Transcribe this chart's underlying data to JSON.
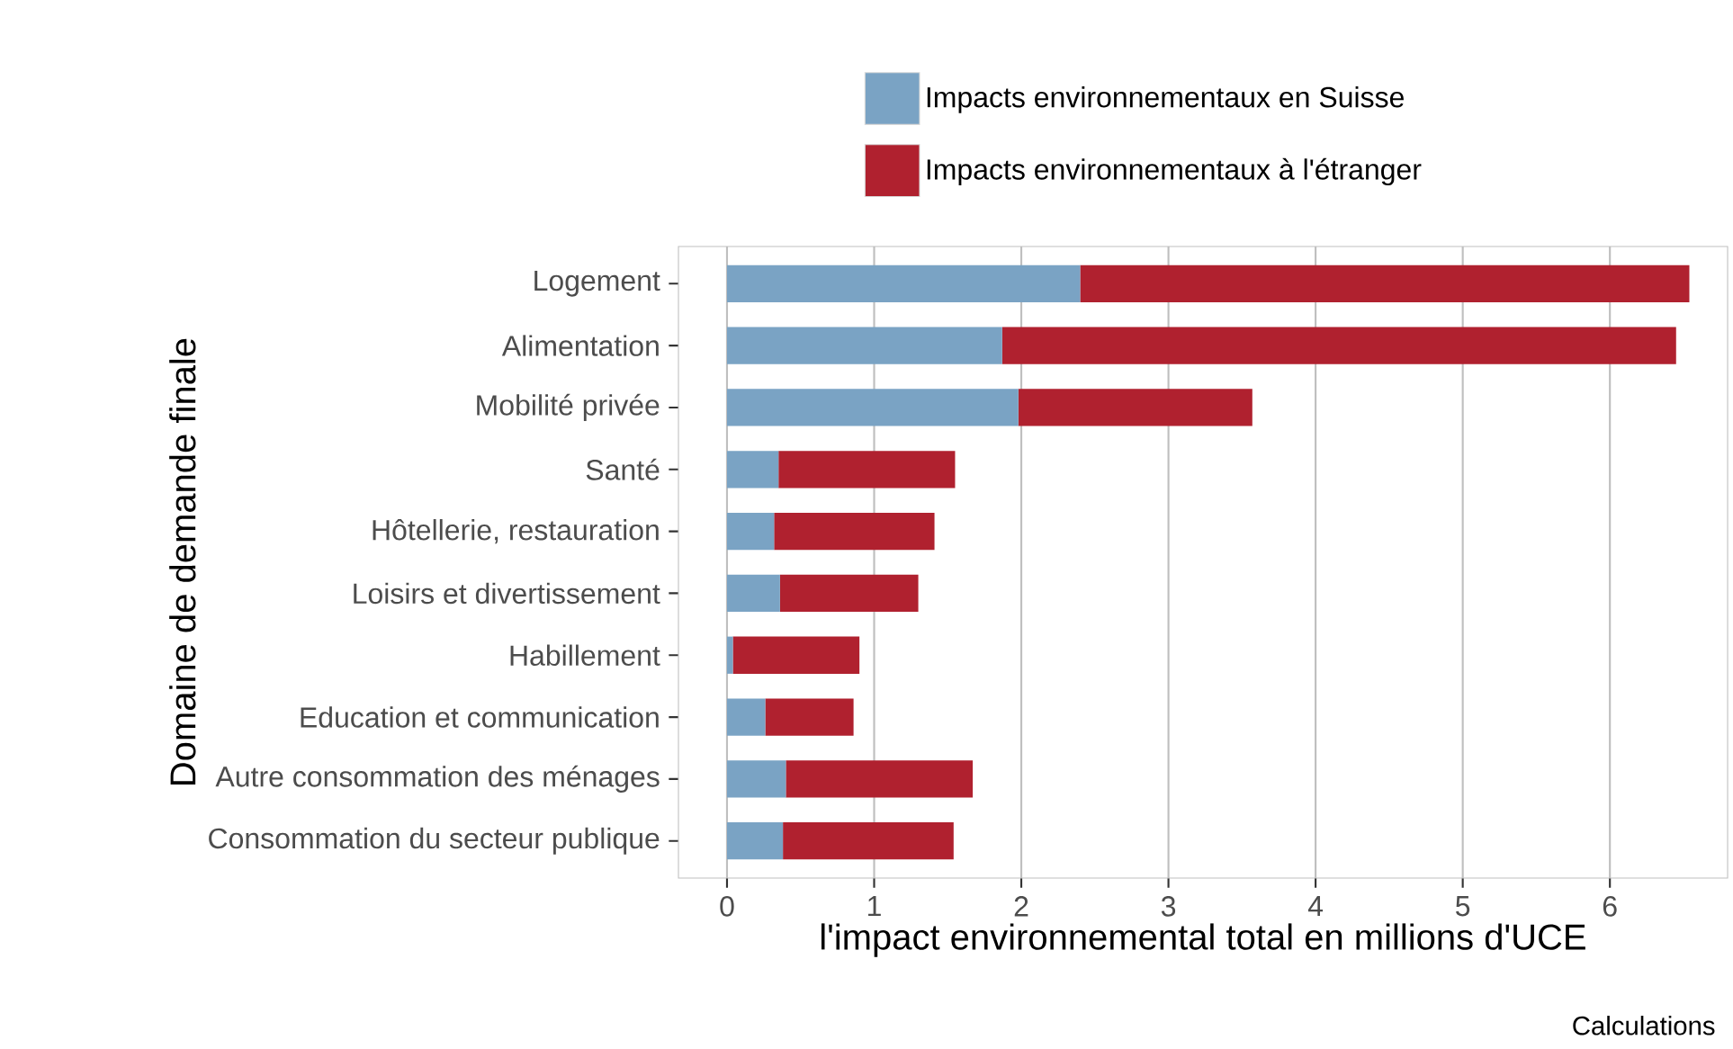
{
  "chart_data": {
    "type": "bar",
    "orientation": "horizontal",
    "stacked": true,
    "xlabel": "l'impact environnemental total en millions d'UCE",
    "ylabel": "Domaine de demande finale",
    "categories": [
      "Logement",
      "Alimentation",
      "Mobilité privée",
      "Santé",
      "Hôtellerie, restauration",
      "Loisirs et divertissement",
      "Habillement",
      "Education et communication",
      "Autre consommation des ménages",
      "Consommation du secteur publique"
    ],
    "series": [
      {
        "name": "Impacts environnementaux en Suisse",
        "color": "#7aa3c4",
        "values": [
          2.4,
          1.87,
          1.98,
          0.35,
          0.32,
          0.36,
          0.04,
          0.26,
          0.4,
          0.38
        ]
      },
      {
        "name": "Impacts environnementaux à l'étranger",
        "color": "#b0212f",
        "values": [
          4.14,
          4.58,
          1.59,
          1.2,
          1.09,
          0.94,
          0.86,
          0.6,
          1.27,
          1.16
        ]
      }
    ],
    "xlim": [
      -0.33,
      6.8
    ],
    "xticks": [
      0,
      1,
      2,
      3,
      4,
      5,
      6
    ],
    "grid": "x",
    "legend": "top",
    "annotations": [
      "Calculations"
    ]
  }
}
